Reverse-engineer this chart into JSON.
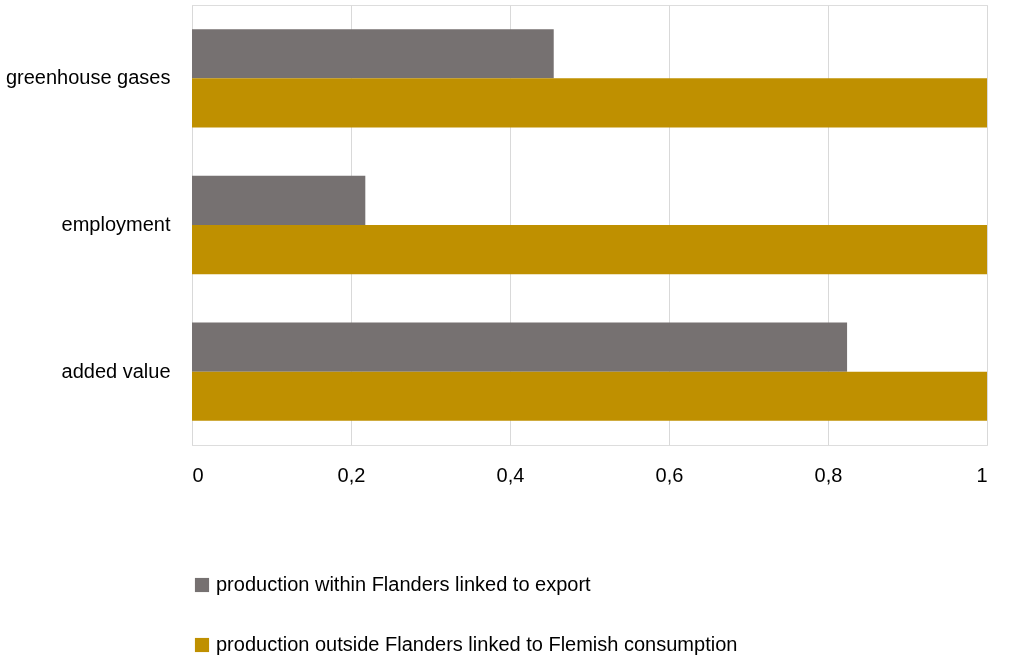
{
  "chart_data": {
    "type": "bar",
    "orientation": "horizontal",
    "categories": [
      "greenhouse gases",
      "employment",
      "added value"
    ],
    "series": [
      {
        "name": "production within Flanders linked to export",
        "color": "#767171",
        "values": [
          0.455,
          0.218,
          0.824
        ]
      },
      {
        "name": "production outside Flanders linked to Flemish consumption",
        "color": "#bf9000",
        "values": [
          1.0,
          1.0,
          1.0
        ]
      }
    ],
    "xlim": [
      0,
      1
    ],
    "xticks": [
      0,
      {
        "value": 0.2,
        "label": "0,2"
      },
      {
        "value": 0.4,
        "label": "0,4"
      },
      {
        "value": 0.6,
        "label": "0,6"
      },
      {
        "value": 0.8,
        "label": "0,8"
      },
      1
    ],
    "grid": "x",
    "legend": "bottom"
  }
}
